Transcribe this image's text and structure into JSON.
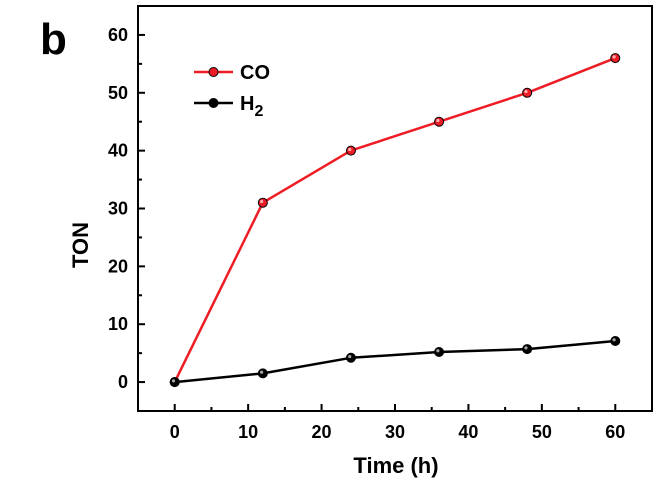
{
  "panel_label": "b",
  "chart_data": {
    "type": "line",
    "xlabel": "Time (h)",
    "ylabel": "TON",
    "xlim": [
      -5,
      65
    ],
    "ylim": [
      -5,
      65
    ],
    "xticks": [
      0,
      10,
      20,
      30,
      40,
      50,
      60
    ],
    "yticks": [
      0,
      10,
      20,
      30,
      40,
      50,
      60
    ],
    "x": [
      0,
      12,
      24,
      36,
      48,
      60
    ],
    "grid": false,
    "legend_position": "top-left",
    "series": [
      {
        "name": "CO",
        "name_main": "CO",
        "name_sub": "",
        "color": "#ee1c25",
        "values": [
          0,
          31,
          40,
          45,
          50,
          56
        ]
      },
      {
        "name": "H2",
        "name_main": "H",
        "name_sub": "2",
        "color": "#000000",
        "values": [
          0,
          1.5,
          4.2,
          5.2,
          5.7,
          7.1
        ]
      }
    ]
  }
}
